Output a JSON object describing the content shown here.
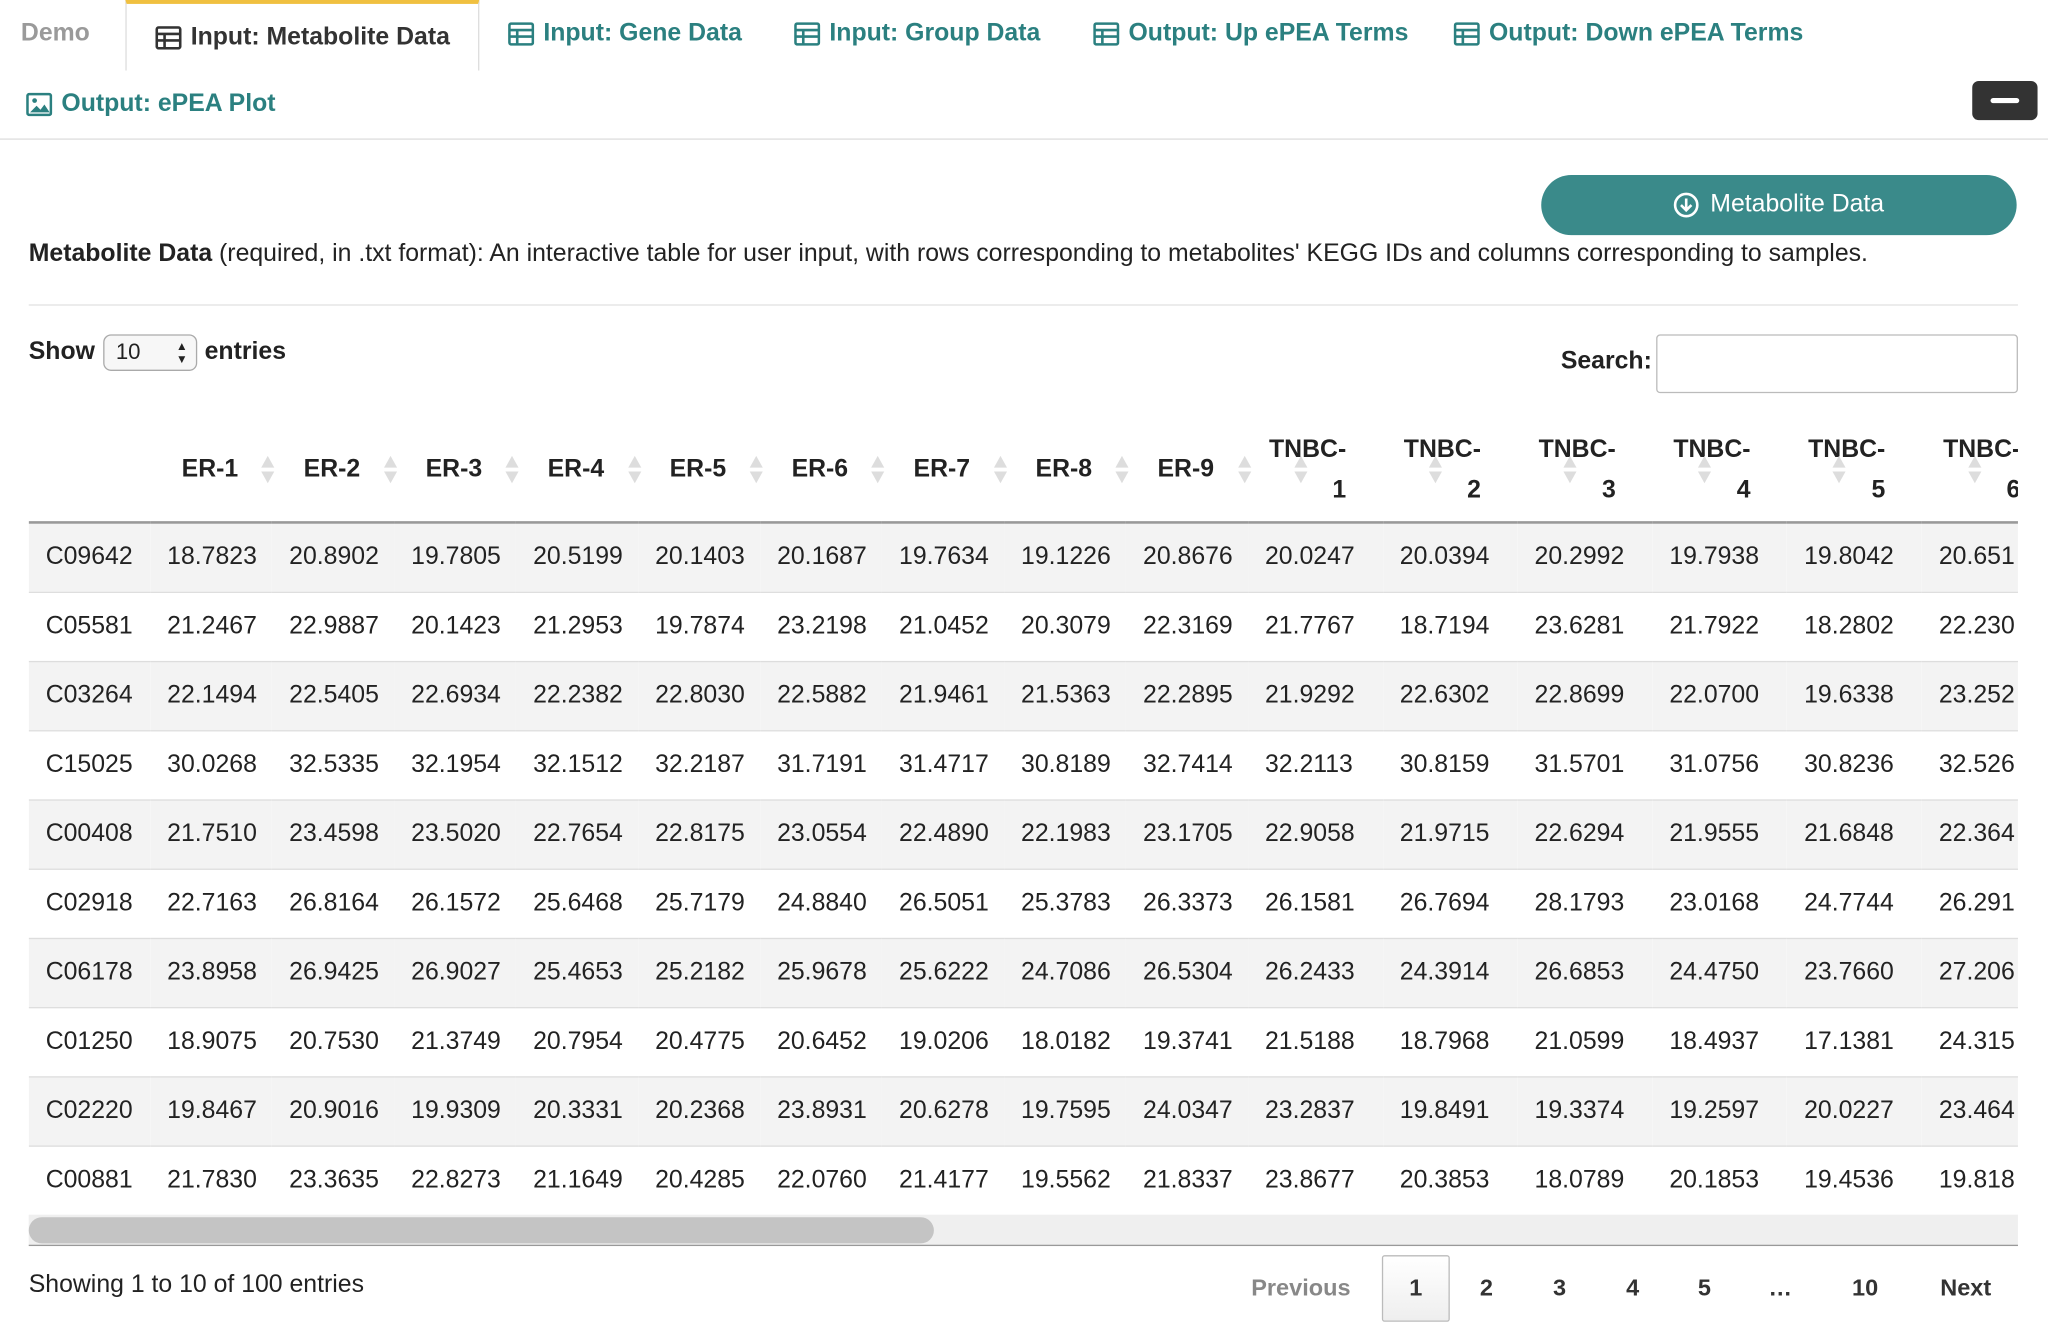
{
  "tabs": [
    "Demo",
    "Input: Metabolite Data",
    "Input: Gene Data",
    "Input: Group Data",
    "Output: Up ePEA Terms",
    "Output: Down ePEA Terms",
    "Output: ePEA Plot"
  ],
  "download_button": "Metabolite Data",
  "description": {
    "bold": "Metabolite Data",
    "text": "(required, in .txt format): An interactive table for user input, with rows corresponding to metabolites' KEGG IDs and columns corresponding to samples."
  },
  "length_control": {
    "show": "Show",
    "page_length": "10",
    "entries": "entries"
  },
  "search_label": "Search:",
  "table": {
    "columns": [
      "ER-1",
      "ER-2",
      "ER-3",
      "ER-4",
      "ER-5",
      "ER-6",
      "ER-7",
      "ER-8",
      "ER-9",
      "TNBC-1",
      "TNBC-2",
      "TNBC-3",
      "TNBC-4",
      "TNBC-5",
      "TNBC-6"
    ],
    "rows": [
      {
        "id": "C09642",
        "values": [
          "18.7823",
          "20.8902",
          "19.7805",
          "20.5199",
          "20.1403",
          "20.1687",
          "19.7634",
          "19.1226",
          "20.8676",
          "20.0247",
          "20.0394",
          "20.2992",
          "19.7938",
          "19.8042",
          "20.651"
        ]
      },
      {
        "id": "C05581",
        "values": [
          "21.2467",
          "22.9887",
          "20.1423",
          "21.2953",
          "19.7874",
          "23.2198",
          "21.0452",
          "20.3079",
          "22.3169",
          "21.7767",
          "18.7194",
          "23.6281",
          "21.7922",
          "18.2802",
          "22.230"
        ]
      },
      {
        "id": "C03264",
        "values": [
          "22.1494",
          "22.5405",
          "22.6934",
          "22.2382",
          "22.8030",
          "22.5882",
          "21.9461",
          "21.5363",
          "22.2895",
          "21.9292",
          "22.6302",
          "22.8699",
          "22.0700",
          "19.6338",
          "23.252"
        ]
      },
      {
        "id": "C15025",
        "values": [
          "30.0268",
          "32.5335",
          "32.1954",
          "32.1512",
          "32.2187",
          "31.7191",
          "31.4717",
          "30.8189",
          "32.7414",
          "32.2113",
          "30.8159",
          "31.5701",
          "31.0756",
          "30.8236",
          "32.526"
        ]
      },
      {
        "id": "C00408",
        "values": [
          "21.7510",
          "23.4598",
          "23.5020",
          "22.7654",
          "22.8175",
          "23.0554",
          "22.4890",
          "22.1983",
          "23.1705",
          "22.9058",
          "21.9715",
          "22.6294",
          "21.9555",
          "21.6848",
          "22.364"
        ]
      },
      {
        "id": "C02918",
        "values": [
          "22.7163",
          "26.8164",
          "26.1572",
          "25.6468",
          "25.7179",
          "24.8840",
          "26.5051",
          "25.3783",
          "26.3373",
          "26.1581",
          "26.7694",
          "28.1793",
          "23.0168",
          "24.7744",
          "26.291"
        ]
      },
      {
        "id": "C06178",
        "values": [
          "23.8958",
          "26.9425",
          "26.9027",
          "25.4653",
          "25.2182",
          "25.9678",
          "25.6222",
          "24.7086",
          "26.5304",
          "26.2433",
          "24.3914",
          "26.6853",
          "24.4750",
          "23.7660",
          "27.206"
        ]
      },
      {
        "id": "C01250",
        "values": [
          "18.9075",
          "20.7530",
          "21.3749",
          "20.7954",
          "20.4775",
          "20.6452",
          "19.0206",
          "18.0182",
          "19.3741",
          "21.5188",
          "18.7968",
          "21.0599",
          "18.4937",
          "17.1381",
          "24.315"
        ]
      },
      {
        "id": "C02220",
        "values": [
          "19.8467",
          "20.9016",
          "19.9309",
          "20.3331",
          "20.2368",
          "23.8931",
          "20.6278",
          "19.7595",
          "24.0347",
          "23.2837",
          "19.8491",
          "19.3374",
          "19.2597",
          "20.0227",
          "23.464"
        ]
      },
      {
        "id": "C00881",
        "values": [
          "21.7830",
          "23.3635",
          "22.8273",
          "21.1649",
          "20.4285",
          "22.0760",
          "21.4177",
          "19.5562",
          "21.8337",
          "23.8677",
          "20.3853",
          "18.0789",
          "20.1853",
          "19.4536",
          "19.818"
        ]
      }
    ]
  },
  "info": "Showing 1 to 10 of 100 entries",
  "pagination": [
    "Previous",
    "1",
    "2",
    "3",
    "4",
    "5",
    "…",
    "10",
    "Next"
  ]
}
